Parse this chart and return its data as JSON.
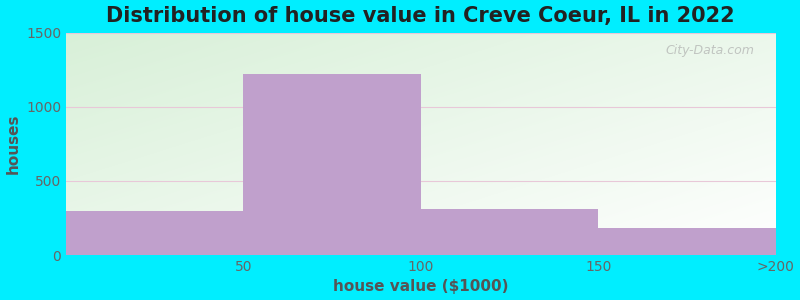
{
  "title": "Distribution of house value in Creve Coeur, IL in 2022",
  "xlabel": "house value ($1000)",
  "ylabel": "houses",
  "bar_values": [
    300,
    1220,
    310,
    185
  ],
  "bar_labels": [
    "50",
    "100",
    "150",
    ">200"
  ],
  "bar_color": "#c0a0cc",
  "ylim": [
    0,
    1500
  ],
  "yticks": [
    0,
    500,
    1000,
    1500
  ],
  "background_color": "#00eeff",
  "plot_bg_green": "#d8f0d8",
  "plot_bg_white": "#ffffff",
  "grid_color": "#e8c8d8",
  "title_fontsize": 15,
  "axis_label_fontsize": 11,
  "tick_fontsize": 10,
  "watermark": "City-Data.com",
  "n_bins": 4
}
